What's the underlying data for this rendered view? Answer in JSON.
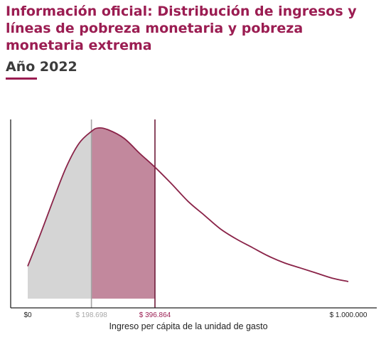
{
  "title": "Información oficial: Distribución de ingresos y líneas de pobreza monetaria y pobreza monetaria extrema",
  "subtitle": "Año 2022",
  "colors": {
    "accent": "#9b1d52",
    "curve": "#8a2348",
    "extreme_poverty_fill": "#d5d5d5",
    "poverty_fill": "#c2889d",
    "extreme_poverty_line": "#a5a5a5",
    "poverty_line": "#6e1b3a",
    "gray_tick": "#a8a8a8",
    "accent_tick": "#9b1d52"
  },
  "chart_data": {
    "type": "area",
    "title": "Información oficial: Distribución de ingresos y líneas de pobreza monetaria y pobreza monetaria extrema",
    "subtitle": "Año 2022",
    "xlabel": "Ingreso per cápita de la unidad de gasto",
    "ylabel": "",
    "xlim": [
      0,
      1000000
    ],
    "ylim": [
      0,
      1
    ],
    "grid": false,
    "x_ticks": [
      {
        "value": 0,
        "label": "$0",
        "style": "default"
      },
      {
        "value": 198698,
        "label": "$ 198.698",
        "style": "gray"
      },
      {
        "value": 396864,
        "label": "$ 396.864",
        "style": "accent"
      },
      {
        "value": 1000000,
        "label": "$ 1.000.000",
        "style": "default"
      }
    ],
    "curve": {
      "x": [
        0,
        40000,
        80000,
        120000,
        160000,
        198698,
        220000,
        250000,
        300000,
        350000,
        396864,
        450000,
        500000,
        550000,
        600000,
        650000,
        700000,
        750000,
        800000,
        850000,
        900000,
        950000,
        1000000
      ],
      "y": [
        0.19,
        0.38,
        0.58,
        0.77,
        0.91,
        0.98,
        1.0,
        0.99,
        0.94,
        0.85,
        0.77,
        0.67,
        0.57,
        0.49,
        0.41,
        0.35,
        0.3,
        0.25,
        0.21,
        0.18,
        0.15,
        0.12,
        0.1
      ]
    },
    "regions": [
      {
        "label": "pobreza monetaria extrema",
        "x_start": 0,
        "x_end": 198698,
        "color": "#d5d5d5"
      },
      {
        "label": "pobreza monetaria",
        "x_start": 198698,
        "x_end": 396864,
        "color": "#c2889d"
      }
    ],
    "reference_lines": [
      {
        "x": 198698,
        "color": "#a5a5a5"
      },
      {
        "x": 396864,
        "color": "#6e1b3a"
      }
    ]
  }
}
